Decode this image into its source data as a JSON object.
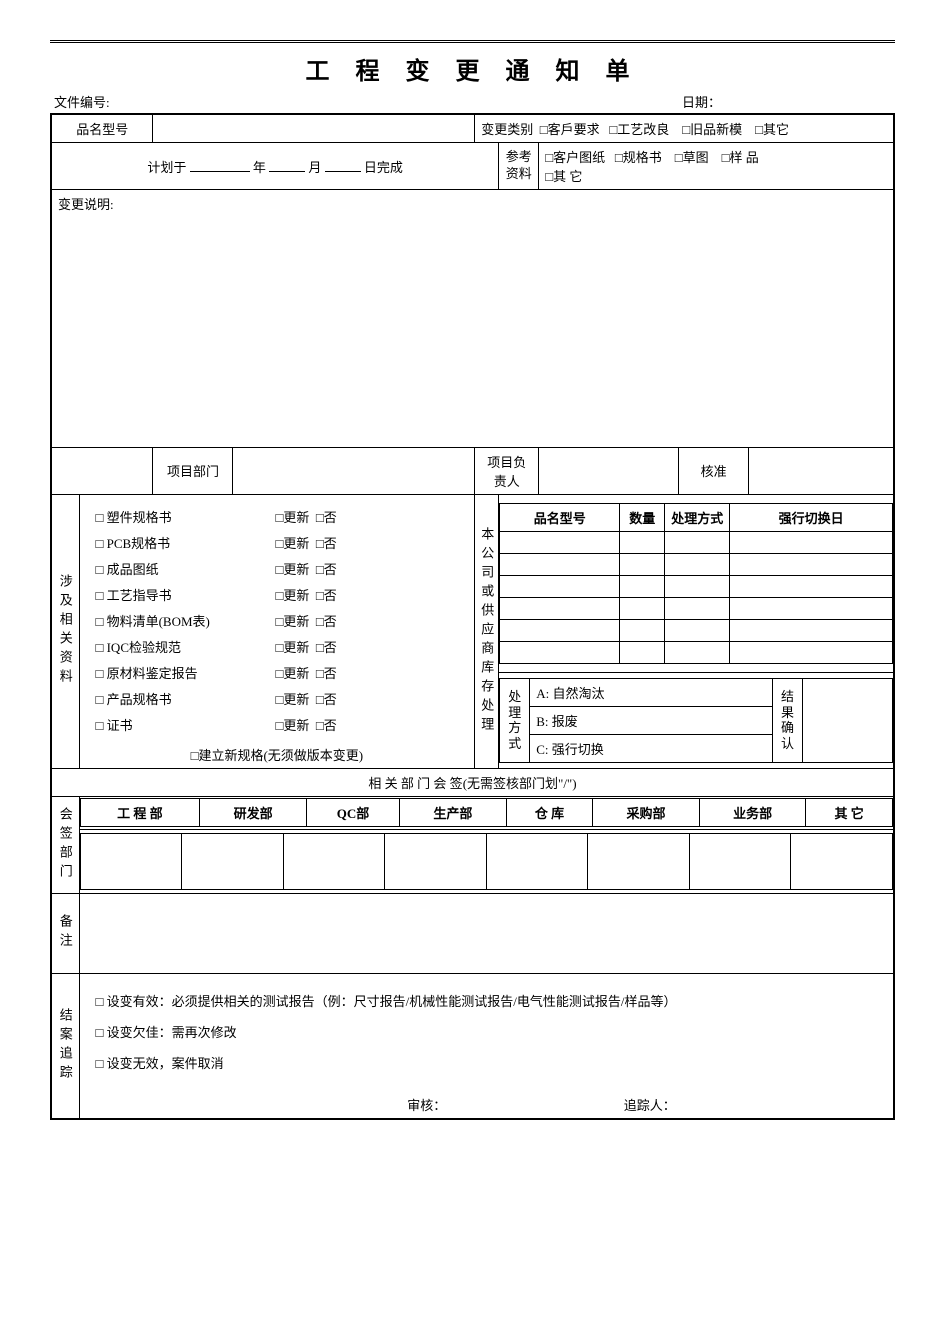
{
  "title": "工 程 变 更 通 知 单",
  "meta": {
    "doc_no_label": "文件编号:",
    "date_label": "日期："
  },
  "row1": {
    "model_label": "品名型号",
    "cat_label": "变更类别",
    "cats": [
      "客戶要求",
      "工艺改良",
      "旧品新模",
      "其它"
    ]
  },
  "row2": {
    "plan_prefix": "计划于",
    "year": "年",
    "month": "月",
    "day": "日完成",
    "ref_label": "参考资料",
    "refs": [
      "客户图纸",
      "规格书",
      "草图",
      "样 品",
      "其 它"
    ]
  },
  "desc_label": "变更说明:",
  "row_sig": {
    "dept": "项目部门",
    "resp": "项目负责人",
    "appr": "核准"
  },
  "related": {
    "label": "涉及相关资料",
    "docs": [
      "塑件规格书",
      "PCB规格书",
      "成品图纸",
      "工艺指导书",
      "物料清单(BOM表)",
      "IQC检验规范",
      "原材料鉴定报告",
      "产品规格书",
      "证书"
    ],
    "upd": "更新",
    "no": "否",
    "new_std": "建立新规格(无须做版本变更)"
  },
  "stock": {
    "label": "本公司或供应商库存处理",
    "hdr": [
      "品名型号",
      "数量",
      "处理方式",
      "强行切换日"
    ],
    "pm_label": "处理方式",
    "methods": [
      "A: 自然淘汰",
      "B: 报废",
      "C: 强行切换"
    ],
    "conf_label": "结果确认"
  },
  "cosign": {
    "title": "相 关 部 门 会 签",
    "hint": "(无需签核部门划\"/\")",
    "label": "会签部门",
    "depts": [
      "工 程 部",
      "研发部",
      "QC部",
      "生产部",
      "仓 库",
      "采购部",
      "业务部",
      "其 它"
    ]
  },
  "remark_label": "备注",
  "closure": {
    "label": "结案追踪",
    "items": [
      "设变有效：必须提供相关的测试报告（例：尺寸报告/机械性能测试报告/电气性能测试报告/样品等）",
      "设变欠佳：需再次修改",
      "设变无效，案件取消"
    ],
    "review": "审核：",
    "tracker": "追踪人："
  }
}
